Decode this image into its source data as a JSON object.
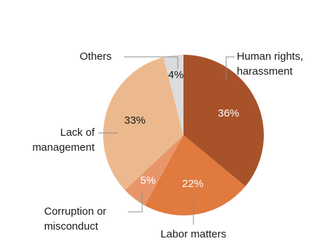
{
  "chart_data": {
    "type": "pie",
    "categories": [
      [
        "Human rights,",
        "harassment"
      ],
      [
        "Labor matters"
      ],
      [
        "Corruption or",
        "misconduct"
      ],
      [
        "Lack of",
        "management"
      ],
      [
        "Others"
      ]
    ],
    "values": [
      36,
      22,
      5,
      33,
      4
    ],
    "value_labels": [
      "36%",
      "22%",
      "5%",
      "33%",
      "4%"
    ],
    "colors": [
      "#a8522a",
      "#e07a3e",
      "#e8956a",
      "#ecb98f",
      "#dcdcdc"
    ],
    "label_colors": [
      "#ffffff",
      "#ffffff",
      "#ffffff",
      "#1a1a1a",
      "#1a1a1a"
    ]
  }
}
